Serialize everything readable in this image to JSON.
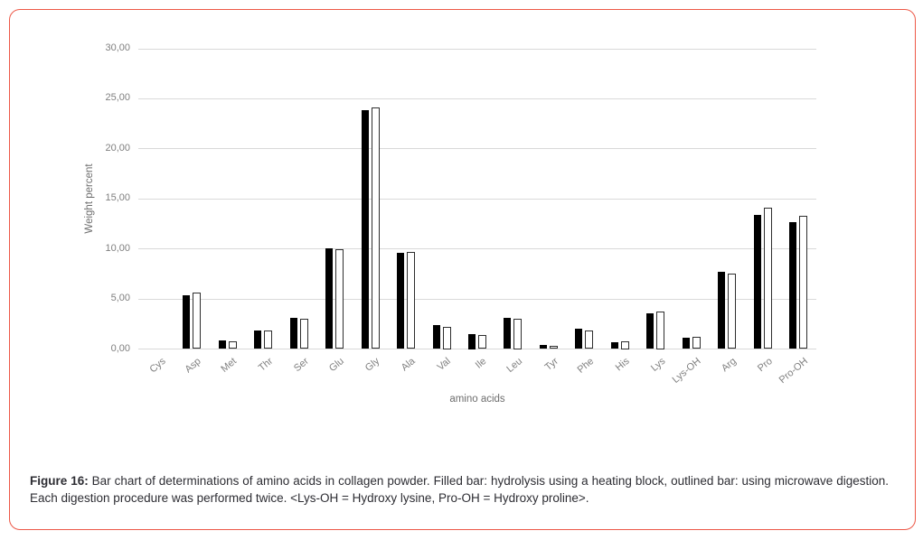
{
  "figure": {
    "border_color": "#ed5847"
  },
  "chart_data": {
    "type": "bar",
    "categories": [
      "Cys",
      "Asp",
      "Met",
      "Thr",
      "Ser",
      "Glu",
      "Gly",
      "Ala",
      "Val",
      "Ile",
      "Leu",
      "Tyr",
      "Phe",
      "His",
      "Lys",
      "Lys-OH",
      "Arg",
      "Pro",
      "Pro-OH"
    ],
    "series": [
      {
        "name": "hydrolysis using a heating block (filled bar)",
        "values": [
          0,
          5.4,
          0.85,
          1.85,
          3.1,
          10.1,
          23.9,
          9.6,
          2.35,
          1.5,
          3.1,
          0.4,
          2.0,
          0.65,
          3.6,
          1.1,
          7.75,
          13.4,
          12.7
        ]
      },
      {
        "name": "microwave digestion (outlined bar)",
        "values": [
          0,
          5.6,
          0.8,
          1.85,
          3.05,
          10.0,
          24.1,
          9.7,
          2.25,
          1.4,
          3.0,
          0.3,
          1.85,
          0.75,
          3.75,
          1.25,
          7.55,
          14.1,
          13.35
        ]
      }
    ],
    "title": "",
    "xlabel": "amino acids",
    "ylabel": "Weight percent",
    "ylim": [
      0,
      30
    ],
    "ytick_step": 5,
    "yticks": [
      "30,00",
      "25,00",
      "20,00",
      "15,00",
      "10,00",
      "5,00",
      "0,00"
    ],
    "grid": true,
    "legend_position": "none",
    "colors": {
      "filled_bar": "#000000",
      "outlined_bar_border": "#2e2e2e",
      "outlined_bar_fill": "#ffffff",
      "gridline": "#d9d9d9",
      "axis_text": "#7f7f7f"
    }
  },
  "caption": {
    "label": "Figure 16:",
    "text": " Bar chart of determinations of amino acids in collagen powder. Filled bar: hydrolysis using a heating block, outlined bar: using microwave digestion. Each digestion procedure was performed twice. <Lys-OH = Hydroxy lysine, Pro-OH = Hydroxy proline>."
  }
}
